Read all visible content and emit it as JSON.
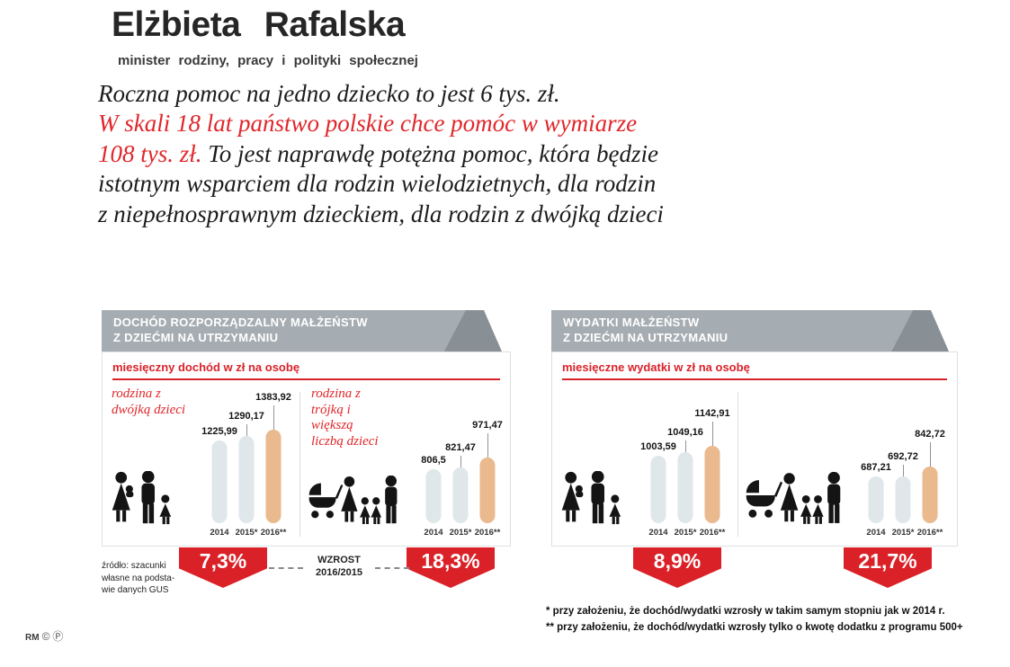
{
  "page": {
    "title": "Elżbieta Rafalska",
    "subtitle": "minister rodziny, pracy i polityki społecznej",
    "quote": {
      "line1": "Roczna pomoc na jedno dziecko to jest 6 tys. zł.",
      "line2_red": "W skali 18 lat państwo polskie chce pomóc w wymiarze",
      "line3_red": "108 tys. zł.",
      "line3_black": " To jest naprawdę potężna pomoc, która będzie",
      "line4": "istotnym wsparciem dla rodzin wielodzietnych, dla rodzin",
      "line5": "z niepełnosprawnym dzieckiem, dla rodzin z dwójką dzieci"
    }
  },
  "colors": {
    "accent_red": "#d8232a",
    "badge_red": "#db2128",
    "bar_past": "#dfe7ea",
    "bar_2016": "#eab98d",
    "header_gray": "#a6adb2",
    "header_dark_gray": "#899095"
  },
  "panels": [
    {
      "title_line1": "DOCHÓD ROZPORZĄDZALNY MAŁŻEŃSTW",
      "title_line2": "Z DZIEĆMI NA UTRZYMANIU",
      "unit_label": "miesięczny dochód w zł na osobę"
    },
    {
      "title_line1": "WYDATKI  MAŁŻEŃSTW",
      "title_line2": "Z DZIEĆMI NA UTRZYMANIU",
      "unit_label": "miesięczne wydatki w zł na osobę"
    }
  ],
  "growth_note": {
    "line1": "WZROST",
    "line2": "2016/2015"
  },
  "chart_data": [
    {
      "type": "bar",
      "panel_title": "DOCHÓD ROZPORZĄDZALNY MAŁŻEŃSTW Z DZIEĆMI NA UTRZYMANIU",
      "group_label": "rodzina z dwójką dzieci",
      "unit": "miesięczny dochód w zł na osobę",
      "categories": [
        "2014",
        "2015*",
        "2016**"
      ],
      "values": [
        1225.99,
        1290.17,
        1383.92
      ],
      "value_labels": [
        "1225,99",
        "1290,17",
        "1383,92"
      ],
      "growth_2016_2015": "7,3%",
      "icon": "family-with-two-children"
    },
    {
      "type": "bar",
      "panel_title": "DOCHÓD ROZPORZĄDZALNY MAŁŻEŃSTW Z DZIEĆMI NA UTRZYMANIU",
      "group_label": "rodzina z trójką i większą liczbą dzieci",
      "unit": "miesięczny dochód w zł na osobę",
      "categories": [
        "2014",
        "2015*",
        "2016**"
      ],
      "values": [
        806.5,
        821.47,
        971.47
      ],
      "value_labels": [
        "806,5",
        "821,47",
        "971,47"
      ],
      "growth_2016_2015": "18,3%",
      "icon": "family-with-three-or-more-children"
    },
    {
      "type": "bar",
      "panel_title": "WYDATKI MAŁŻEŃSTW Z DZIEĆMI NA UTRZYMANIU",
      "group_label": "",
      "unit": "miesięczne wydatki w zł na osobę",
      "categories": [
        "2014",
        "2015*",
        "2016**"
      ],
      "values": [
        1003.59,
        1049.16,
        1142.91
      ],
      "value_labels": [
        "1003,59",
        "1049,16",
        "1142,91"
      ],
      "growth_2016_2015": "8,9%",
      "icon": "family-with-two-children"
    },
    {
      "type": "bar",
      "panel_title": "WYDATKI MAŁŻEŃSTW Z DZIEĆMI NA UTRZYMANIU",
      "group_label": "",
      "unit": "miesięczne wydatki w zł na osobę",
      "categories": [
        "2014",
        "2015*",
        "2016**"
      ],
      "values": [
        687.21,
        692.72,
        842.72
      ],
      "value_labels": [
        "687,21",
        "692,72",
        "842,72"
      ],
      "growth_2016_2015": "21,7%",
      "icon": "family-with-three-or-more-children"
    }
  ],
  "source": {
    "line1": "źródło: szacunki",
    "line2": "własne na podsta-",
    "line3": "wie danych GUS"
  },
  "footnotes": {
    "note1": "* przy założeniu, że dochód/wydatki wzrosły w takim samym stopniu jak w 2014 r.",
    "note2": "** przy założeniu, że dochód/wydatki wzrosły tylko o kwotę dodatku z programu 500+"
  },
  "credits": {
    "agency": "RM",
    "copyright": "©",
    "p_mark": "Ⓟ"
  }
}
